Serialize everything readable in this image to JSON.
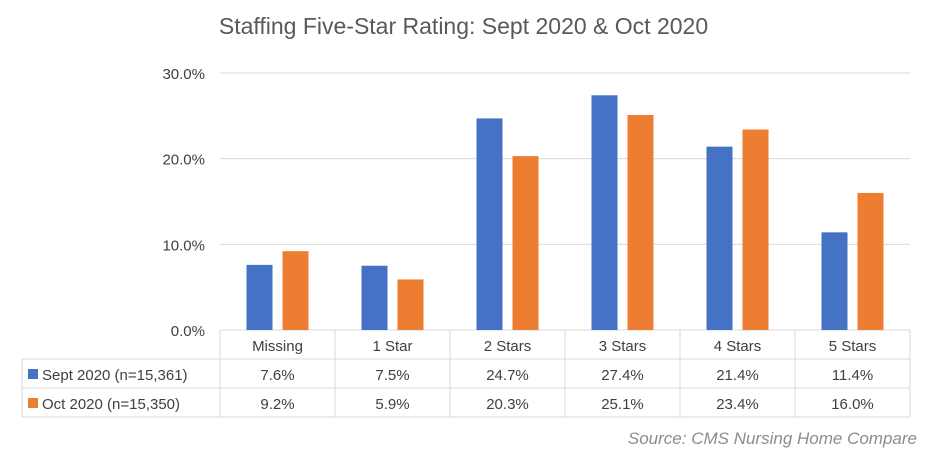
{
  "chart_data": {
    "type": "bar",
    "title": "Staffing Five-Star Rating: Sept 2020 & Oct 2020",
    "categories": [
      "Missing",
      "1 Star",
      "2 Stars",
      "3 Stars",
      "4 Stars",
      "5 Stars"
    ],
    "series": [
      {
        "name": "Sept 2020 (n=15,361)",
        "values": [
          7.6,
          7.5,
          24.7,
          27.4,
          21.4,
          11.4
        ],
        "labels": [
          "7.6%",
          "7.5%",
          "24.7%",
          "27.4%",
          "21.4%",
          "11.4%"
        ],
        "color": "#4472C4"
      },
      {
        "name": "Oct 2020 (n=15,350)",
        "values": [
          9.2,
          5.9,
          20.3,
          25.1,
          23.4,
          16.0
        ],
        "labels": [
          "9.2%",
          "5.9%",
          "20.3%",
          "25.1%",
          "23.4%",
          "16.0%"
        ],
        "color": "#ED7D31"
      }
    ],
    "ylim": [
      0,
      30
    ],
    "yticks": [
      "0.0%",
      "10.0%",
      "20.0%",
      "30.0%"
    ],
    "ytick_values": [
      0,
      10,
      20,
      30
    ],
    "grid": true,
    "legend": "data table",
    "source": "Source: CMS Nursing Home Compare"
  }
}
